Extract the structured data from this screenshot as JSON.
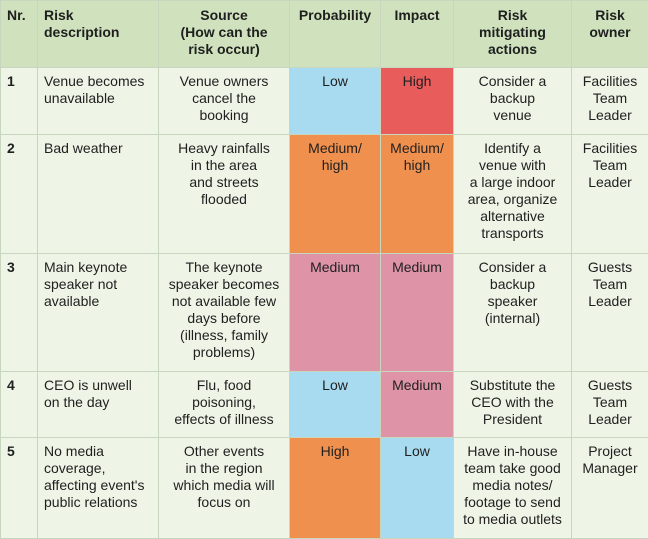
{
  "table": {
    "headers": [
      "Nr.",
      "Risk\ndescription",
      "Source\n(How can the\nrisk occur)",
      "Probability",
      "Impact",
      "Risk\nmitigating\nactions",
      "Risk\nowner"
    ],
    "rows": [
      {
        "nr": "1",
        "description": "Venue becomes\nunavailable",
        "source": "Venue owners\ncancel the\nbooking",
        "probability": "Low",
        "impact": "High",
        "mitigation": "Consider a\nbackup\nvenue",
        "owner": "Facilities\nTeam\nLeader"
      },
      {
        "nr": "2",
        "description": "Bad weather",
        "source": "Heavy rainfalls\nin the area\nand streets\nflooded",
        "probability": "Medium/\nhigh",
        "impact": "Medium/\nhigh",
        "mitigation": "Identify a\nvenue with\na large indoor\narea, organize\nalternative\ntransports",
        "owner": "Facilities\nTeam\nLeader"
      },
      {
        "nr": "3",
        "description": "Main keynote\nspeaker not\navailable",
        "source": "The keynote\nspeaker becomes\nnot available few\ndays before\n(illness, family\nproblems)",
        "probability": "Medium",
        "impact": "Medium",
        "mitigation": "Consider a\nbackup\nspeaker\n(internal)",
        "owner": "Guests\nTeam\nLeader"
      },
      {
        "nr": "4",
        "description": "CEO is unwell\non the day",
        "source": "Flu, food\npoisoning,\neffects of illness",
        "probability": "Low",
        "impact": "Medium",
        "mitigation": "Substitute the\nCEO with the\nPresident",
        "owner": "Guests\nTeam\nLeader"
      },
      {
        "nr": "5",
        "description": "No media\ncoverage,\naffecting event's\npublic relations",
        "source": "Other events\nin the region\nwhich media will\nfocus on",
        "probability": "High",
        "impact": "Low",
        "mitigation": "Have in-house\nteam take good\nmedia notes/\nfootage to send\nto media outlets",
        "owner": "Project\nManager"
      }
    ]
  },
  "colors": {
    "header_bg": "#cfe2bd",
    "cell_bg": "#eef4e6",
    "low": "#a9dbf0",
    "high_impact": "#e85c5c",
    "orange": "#f0904f",
    "medium_pink": "#df93a7"
  }
}
